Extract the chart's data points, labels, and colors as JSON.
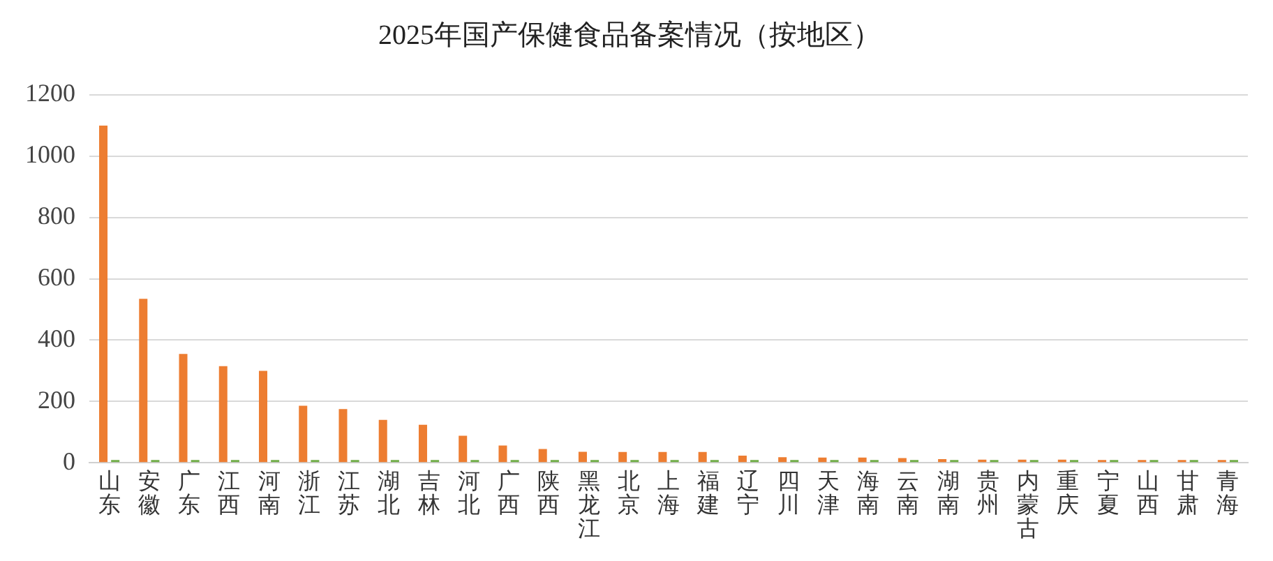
{
  "chart_data": {
    "type": "bar",
    "title": "2025年国产保健食品备案情况（按地区）",
    "categories": [
      "山东",
      "安徽",
      "广东",
      "江西",
      "河南",
      "浙江",
      "江苏",
      "湖北",
      "吉林",
      "河北",
      "广西",
      "陕西",
      "黑龙江",
      "北京",
      "上海",
      "福建",
      "辽宁",
      "四川",
      "天津",
      "海南",
      "云南",
      "湖南",
      "贵州",
      "内蒙古",
      "重庆",
      "宁夏",
      "山西",
      "甘肃",
      "青海"
    ],
    "series": [
      {
        "color": "#ed7d31",
        "values": [
          1100,
          535,
          355,
          315,
          300,
          186,
          175,
          140,
          124,
          88,
          56,
          45,
          36,
          35,
          35,
          35,
          23,
          18,
          17,
          17,
          15,
          12,
          10,
          10,
          10,
          8,
          5,
          5,
          5
        ]
      },
      {
        "color": "#70ad47",
        "values": [
          3,
          3,
          3,
          3,
          3,
          3,
          3,
          3,
          3,
          3,
          3,
          3,
          3,
          3,
          3,
          3,
          3,
          3,
          3,
          3,
          3,
          3,
          3,
          3,
          3,
          3,
          3,
          3,
          3
        ]
      }
    ],
    "ylim": [
      0,
      1200
    ],
    "yticks": [
      0,
      200,
      400,
      600,
      800,
      1000,
      1200
    ],
    "grid": "y",
    "legend": false
  }
}
